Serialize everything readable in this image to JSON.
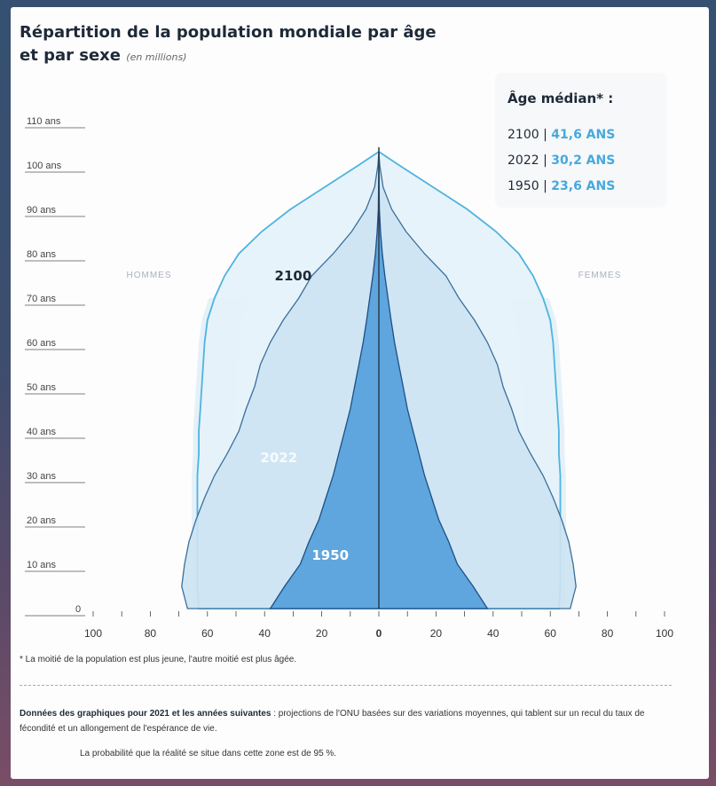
{
  "title_line1": "Répartition de la population mondiale par âge",
  "title_line2": "et par sexe",
  "title_unit": "(en millions)",
  "legend": {
    "title": "Âge médian* :",
    "rows": [
      {
        "year": "2100",
        "sep": " | ",
        "value": "41,6 ANS"
      },
      {
        "year": "2022",
        "sep": " | ",
        "value": "30,2 ANS"
      },
      {
        "year": "1950",
        "sep": " | ",
        "value": "23,6 ANS"
      }
    ]
  },
  "side_labels": {
    "left": "HOMMES",
    "right": "FEMMES"
  },
  "footnote": "* La moitié de la population est plus jeune, l'autre moitié est plus âgée.",
  "note_bold": "Données des graphiques pour 2021 et les années suivantes",
  "note_text": " : projections de l'ONU basées sur des variations moyennes, qui tablent sur un recul du taux de fécondité et un allongement de l'espérance de vie.",
  "probability": "La probabilité que la réalité se situe dans cette zone est de 95 %.",
  "colors": {
    "c2100": "#4fb3e0",
    "c2022": "#3a6f9c",
    "c1950": "#1e4f86",
    "fill2100": "#e4f2fa",
    "fill2022": "#cce3f2",
    "fill1950": "#4a9bd8",
    "band": "#d9ebf6"
  },
  "chart_data": {
    "type": "area",
    "title": "Répartition de la population mondiale par âge et par sexe",
    "xlabel": "",
    "ylabel": "",
    "x_ticks": [
      "100",
      "80",
      "60",
      "40",
      "20",
      "0",
      "20",
      "40",
      "60",
      "80",
      "100"
    ],
    "xlim": [
      -100,
      100
    ],
    "y_ticks": [
      "0",
      "10 ans",
      "20 ans",
      "30 ans",
      "40 ans",
      "50 ans",
      "60 ans",
      "70 ans",
      "80 ans",
      "90 ans",
      "100 ans",
      "110 ans"
    ],
    "ylim": [
      0,
      110
    ],
    "ages": [
      0,
      5,
      10,
      15,
      20,
      25,
      30,
      35,
      40,
      45,
      50,
      55,
      60,
      65,
      70,
      75,
      80,
      85,
      90,
      95,
      100,
      103
    ],
    "series": [
      {
        "name": "2100",
        "label_x": -30,
        "label_y": 74,
        "values": [
          63,
          63.5,
          63.5,
          63.5,
          63.5,
          63.5,
          63.5,
          63,
          63,
          62.5,
          62,
          61.5,
          61,
          60,
          57.5,
          54,
          49,
          41,
          31,
          19,
          7,
          0
        ]
      },
      {
        "name": "2022",
        "label_x": -35,
        "label_y": 33,
        "values": [
          67,
          69,
          68,
          66.5,
          64,
          61,
          57.5,
          53,
          49,
          46.5,
          43.5,
          41.5,
          38,
          33.5,
          28,
          23.5,
          16,
          9.5,
          4.5,
          1.5,
          0.3,
          0
        ]
      },
      {
        "name": "1950",
        "label_x": -17,
        "label_y": 11,
        "values": [
          38,
          33,
          27.5,
          24.5,
          21,
          18.5,
          16,
          14,
          12,
          10,
          8.5,
          7,
          5.5,
          4.3,
          3.2,
          2.1,
          1.2,
          0.6,
          0.2,
          0.1,
          0,
          0
        ]
      }
    ]
  }
}
